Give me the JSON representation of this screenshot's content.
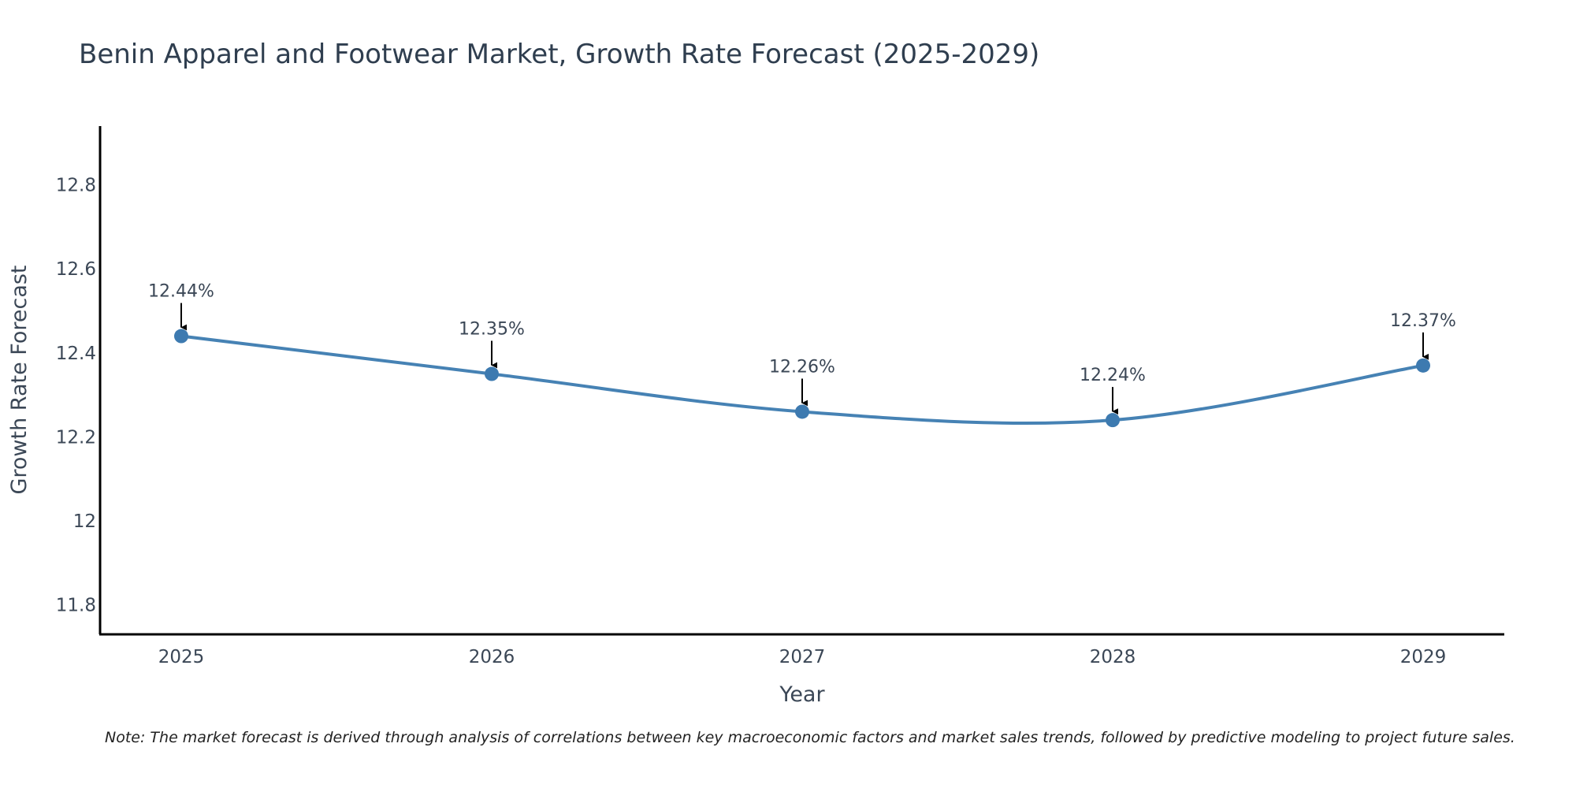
{
  "chart_data": {
    "type": "line",
    "title": "Benin Apparel and Footwear Market, Growth Rate Forecast (2025-2029)",
    "xlabel": "Year",
    "ylabel": "Growth Rate Forecast",
    "categories": [
      "2025",
      "2026",
      "2027",
      "2028",
      "2029"
    ],
    "values": [
      12.44,
      12.35,
      12.26,
      12.24,
      12.37
    ],
    "data_labels": [
      "12.44%",
      "12.35%",
      "12.26%",
      "12.24%",
      "12.37%"
    ],
    "yticks": [
      11.8,
      12,
      12.2,
      12.4,
      12.6,
      12.8
    ],
    "ytick_labels": [
      "11.8",
      "12",
      "12.2",
      "12.4",
      "12.6",
      "12.8"
    ],
    "ylim": [
      11.73,
      12.94
    ],
    "grid": false,
    "line_shape": "spline",
    "line_color": "#4682b4",
    "marker_color": "#3d7ab0",
    "note": "Note: The market forecast is derived through analysis of correlations between key macroeconomic factors and market sales trends, followed by predictive modeling to project future sales."
  }
}
